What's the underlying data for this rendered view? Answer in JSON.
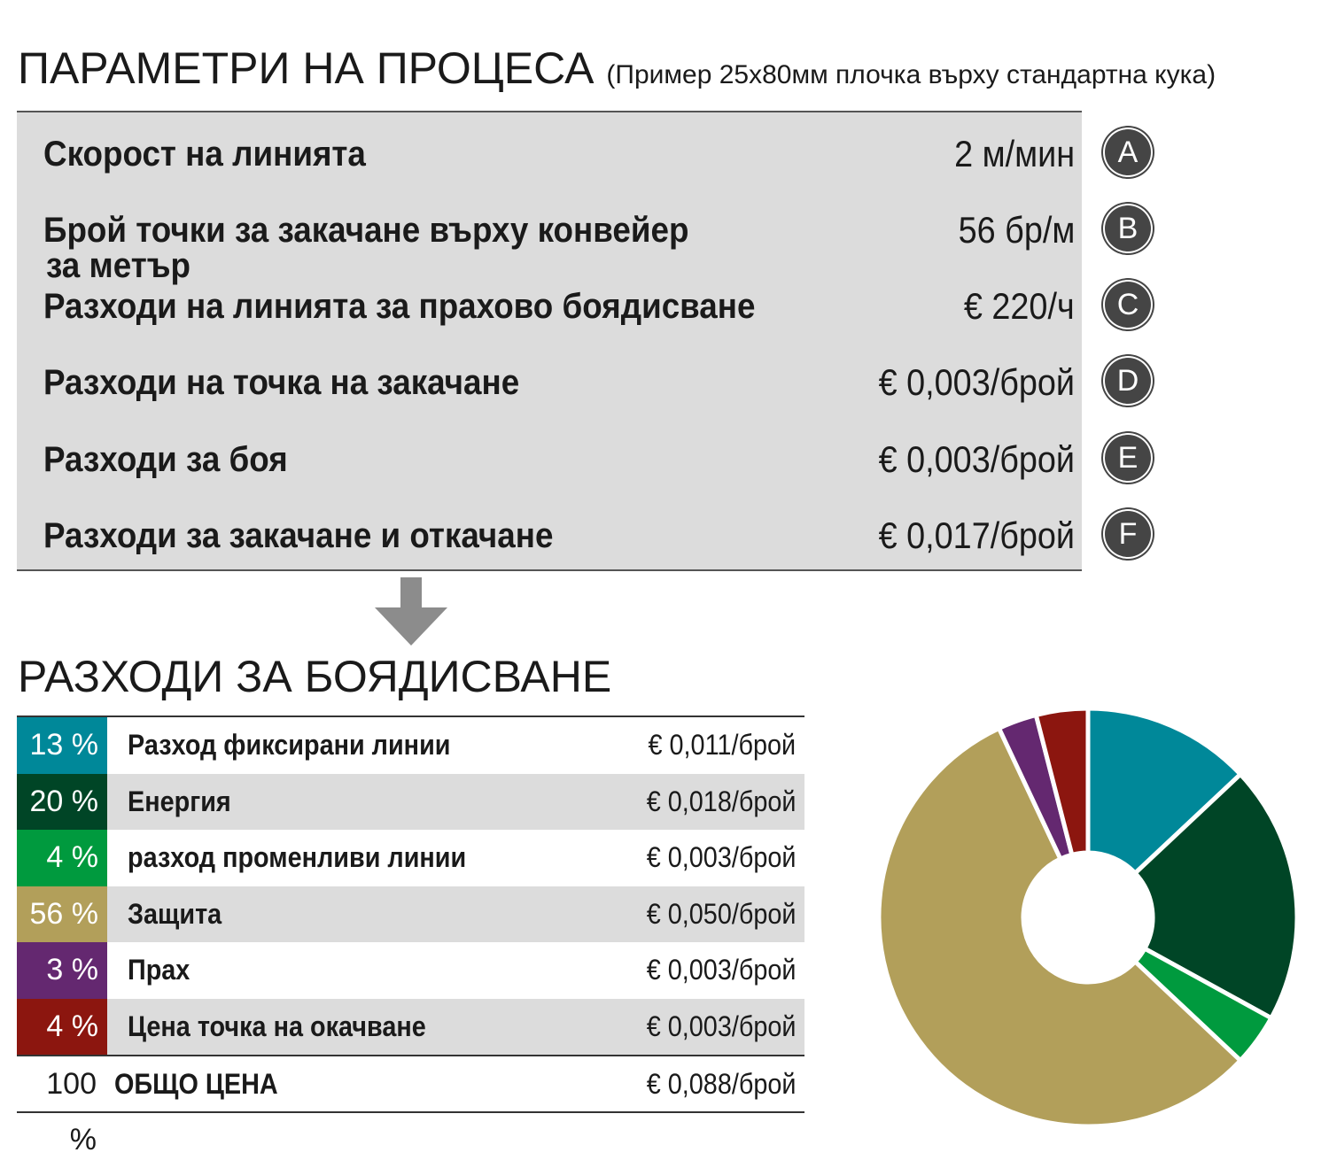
{
  "header": {
    "title": "ПАРАМЕТРИ НА ПРОЦЕСА",
    "subtitle": "(Пример 25x80мм плочка върху стандартна кука)"
  },
  "parameters": [
    {
      "label": "Скорост на линията",
      "value": "2 м/мин",
      "badge": "A"
    },
    {
      "label": "Брой точки за закачане върху конвейер",
      "label2": "за метър",
      "value": "56 бр/м",
      "badge": "B"
    },
    {
      "label": "Разходи на линията за прахово боядисване",
      "value": "€ 220/ч",
      "badge": "C"
    },
    {
      "label": "Разходи на точка на закачане",
      "value": "€ 0,003/брой",
      "badge": "D"
    },
    {
      "label": "Разходи за боя",
      "value": "€ 0,003/брой",
      "badge": "E"
    },
    {
      "label": "Разходи за закачане и откачане",
      "value": "€ 0,017/брой",
      "badge": "F"
    }
  ],
  "arrow_icon": "arrow-down-icon",
  "costs": {
    "title": "РАЗХОДИ ЗА БОЯДИСВАНЕ",
    "rows": [
      {
        "pct": "13 %",
        "name": "Разход фиксирани линии",
        "value": "€ 0,011/брой",
        "color": "#008899"
      },
      {
        "pct": "20 %",
        "name": "Енергия",
        "value": "€ 0,018/брой",
        "color": "#004526"
      },
      {
        "pct": "4 %",
        "name": "разход променливи линии",
        "value": "€ 0,003/брой",
        "color": "#009a3e"
      },
      {
        "pct": "56 %",
        "name": "Защита",
        "value": "€ 0,050/брой",
        "color": "#b29f5a"
      },
      {
        "pct": "3 %",
        "name": "Прах",
        "value": "€ 0,003/брой",
        "color": "#642870"
      },
      {
        "pct": "4 %",
        "name": "Цена точка на окачване",
        "value": "€ 0,003/брой",
        "color": "#8c160f"
      }
    ],
    "total": {
      "pct": "100 %",
      "name": "ОБЩО ЦЕНА",
      "value": "€ 0,088/брой"
    }
  },
  "chart_data": {
    "type": "pie",
    "donut": true,
    "start": "top, clockwise",
    "categories": [
      "Разход фиксирани линии",
      "Енергия",
      "разход променливи линии",
      "Защита",
      "Прах",
      "Цена точка на окачване"
    ],
    "values": [
      13,
      20,
      4,
      56,
      3,
      4
    ],
    "colors": [
      "#008899",
      "#004526",
      "#009a3e",
      "#b29f5a",
      "#642870",
      "#8c160f"
    ],
    "legend": "table on left"
  }
}
